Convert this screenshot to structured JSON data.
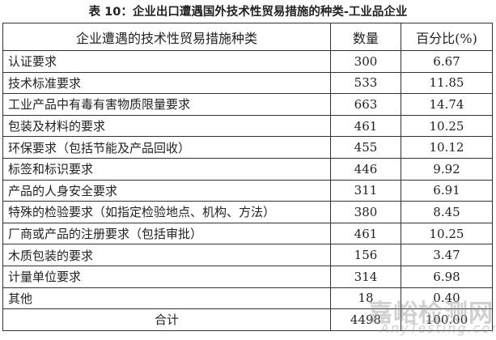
{
  "title": "表 10：企业出口遭遇国外技术性贸易措施的种类-工业品企业",
  "headers": [
    "企业遭遇的技术性贸易措施种类",
    "数量",
    "百分比(%)"
  ],
  "rows": [
    {
      "type": "认证要求",
      "count": "300",
      "pct": "6.67"
    },
    {
      "type": "技术标准要求",
      "count": "533",
      "pct": "11.85"
    },
    {
      "type": "工业产品中有毒有害物质限量要求",
      "count": "663",
      "pct": "14.74"
    },
    {
      "type": "包装及材料的要求",
      "count": "461",
      "pct": "10.25"
    },
    {
      "type": "环保要求（包括节能及产品回收）",
      "count": "455",
      "pct": "10.12"
    },
    {
      "type": "标签和标识要求",
      "count": "446",
      "pct": "9.92"
    },
    {
      "type": "产品的人身安全要求",
      "count": "311",
      "pct": "6.91"
    },
    {
      "type": "特殊的检验要求（如指定检验地点、机构、方法）",
      "count": "380",
      "pct": "8.45"
    },
    {
      "type": "厂商或产品的注册要求（包括审批）",
      "count": "461",
      "pct": "10.25"
    },
    {
      "type": "木质包装的要求",
      "count": "156",
      "pct": "3.47"
    },
    {
      "type": "计量单位要求",
      "count": "314",
      "pct": "6.98"
    },
    {
      "type": "其他",
      "count": "18",
      "pct": "0.40"
    }
  ],
  "total": {
    "label": "合计",
    "count": "4498",
    "pct": "100.00"
  },
  "watermark": {
    "cn": "嘉峪检测网",
    "en": "AnyTesting.com"
  }
}
